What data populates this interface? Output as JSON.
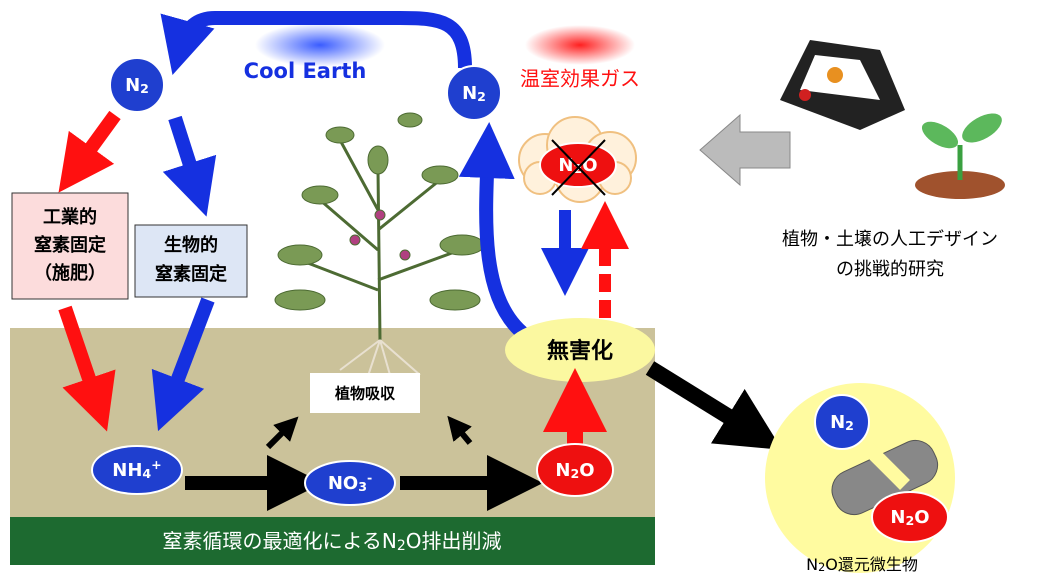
{
  "title": "Cool Earth",
  "greenhouse_gas": "温室効果ガス",
  "nodes": [
    {
      "base": "N",
      "sub": "2"
    },
    {
      "base": "N",
      "sub": "2"
    },
    {
      "base": "N",
      "sub": "2",
      "tail": "O"
    },
    {
      "base": "NH",
      "sub": "4",
      "sup": "+"
    },
    {
      "base": "NO",
      "sub": "3",
      "sup": "-"
    },
    {
      "base": "N",
      "sub": "2",
      "tail": "O"
    },
    {
      "base": "N",
      "sub": "2"
    },
    {
      "base": "N",
      "sub": "2",
      "tail": "O"
    }
  ],
  "industrial_box": [
    "工業的",
    "窒素固定",
    "（施肥）"
  ],
  "biological_box": [
    "生物的",
    "窒素固定"
  ],
  "plant_uptake": "植物吸収",
  "detox": "無害化",
  "research": [
    "植物・土壌の人工デザイン",
    "の挑戦的研究"
  ],
  "banner": {
    "text": "窒素循環の最適化による",
    "base": "N",
    "sub": "2",
    "tail": "O排出削減"
  },
  "microbe_label": {
    "base": "N",
    "sub": "2",
    "tail": "O還元微生物"
  }
}
